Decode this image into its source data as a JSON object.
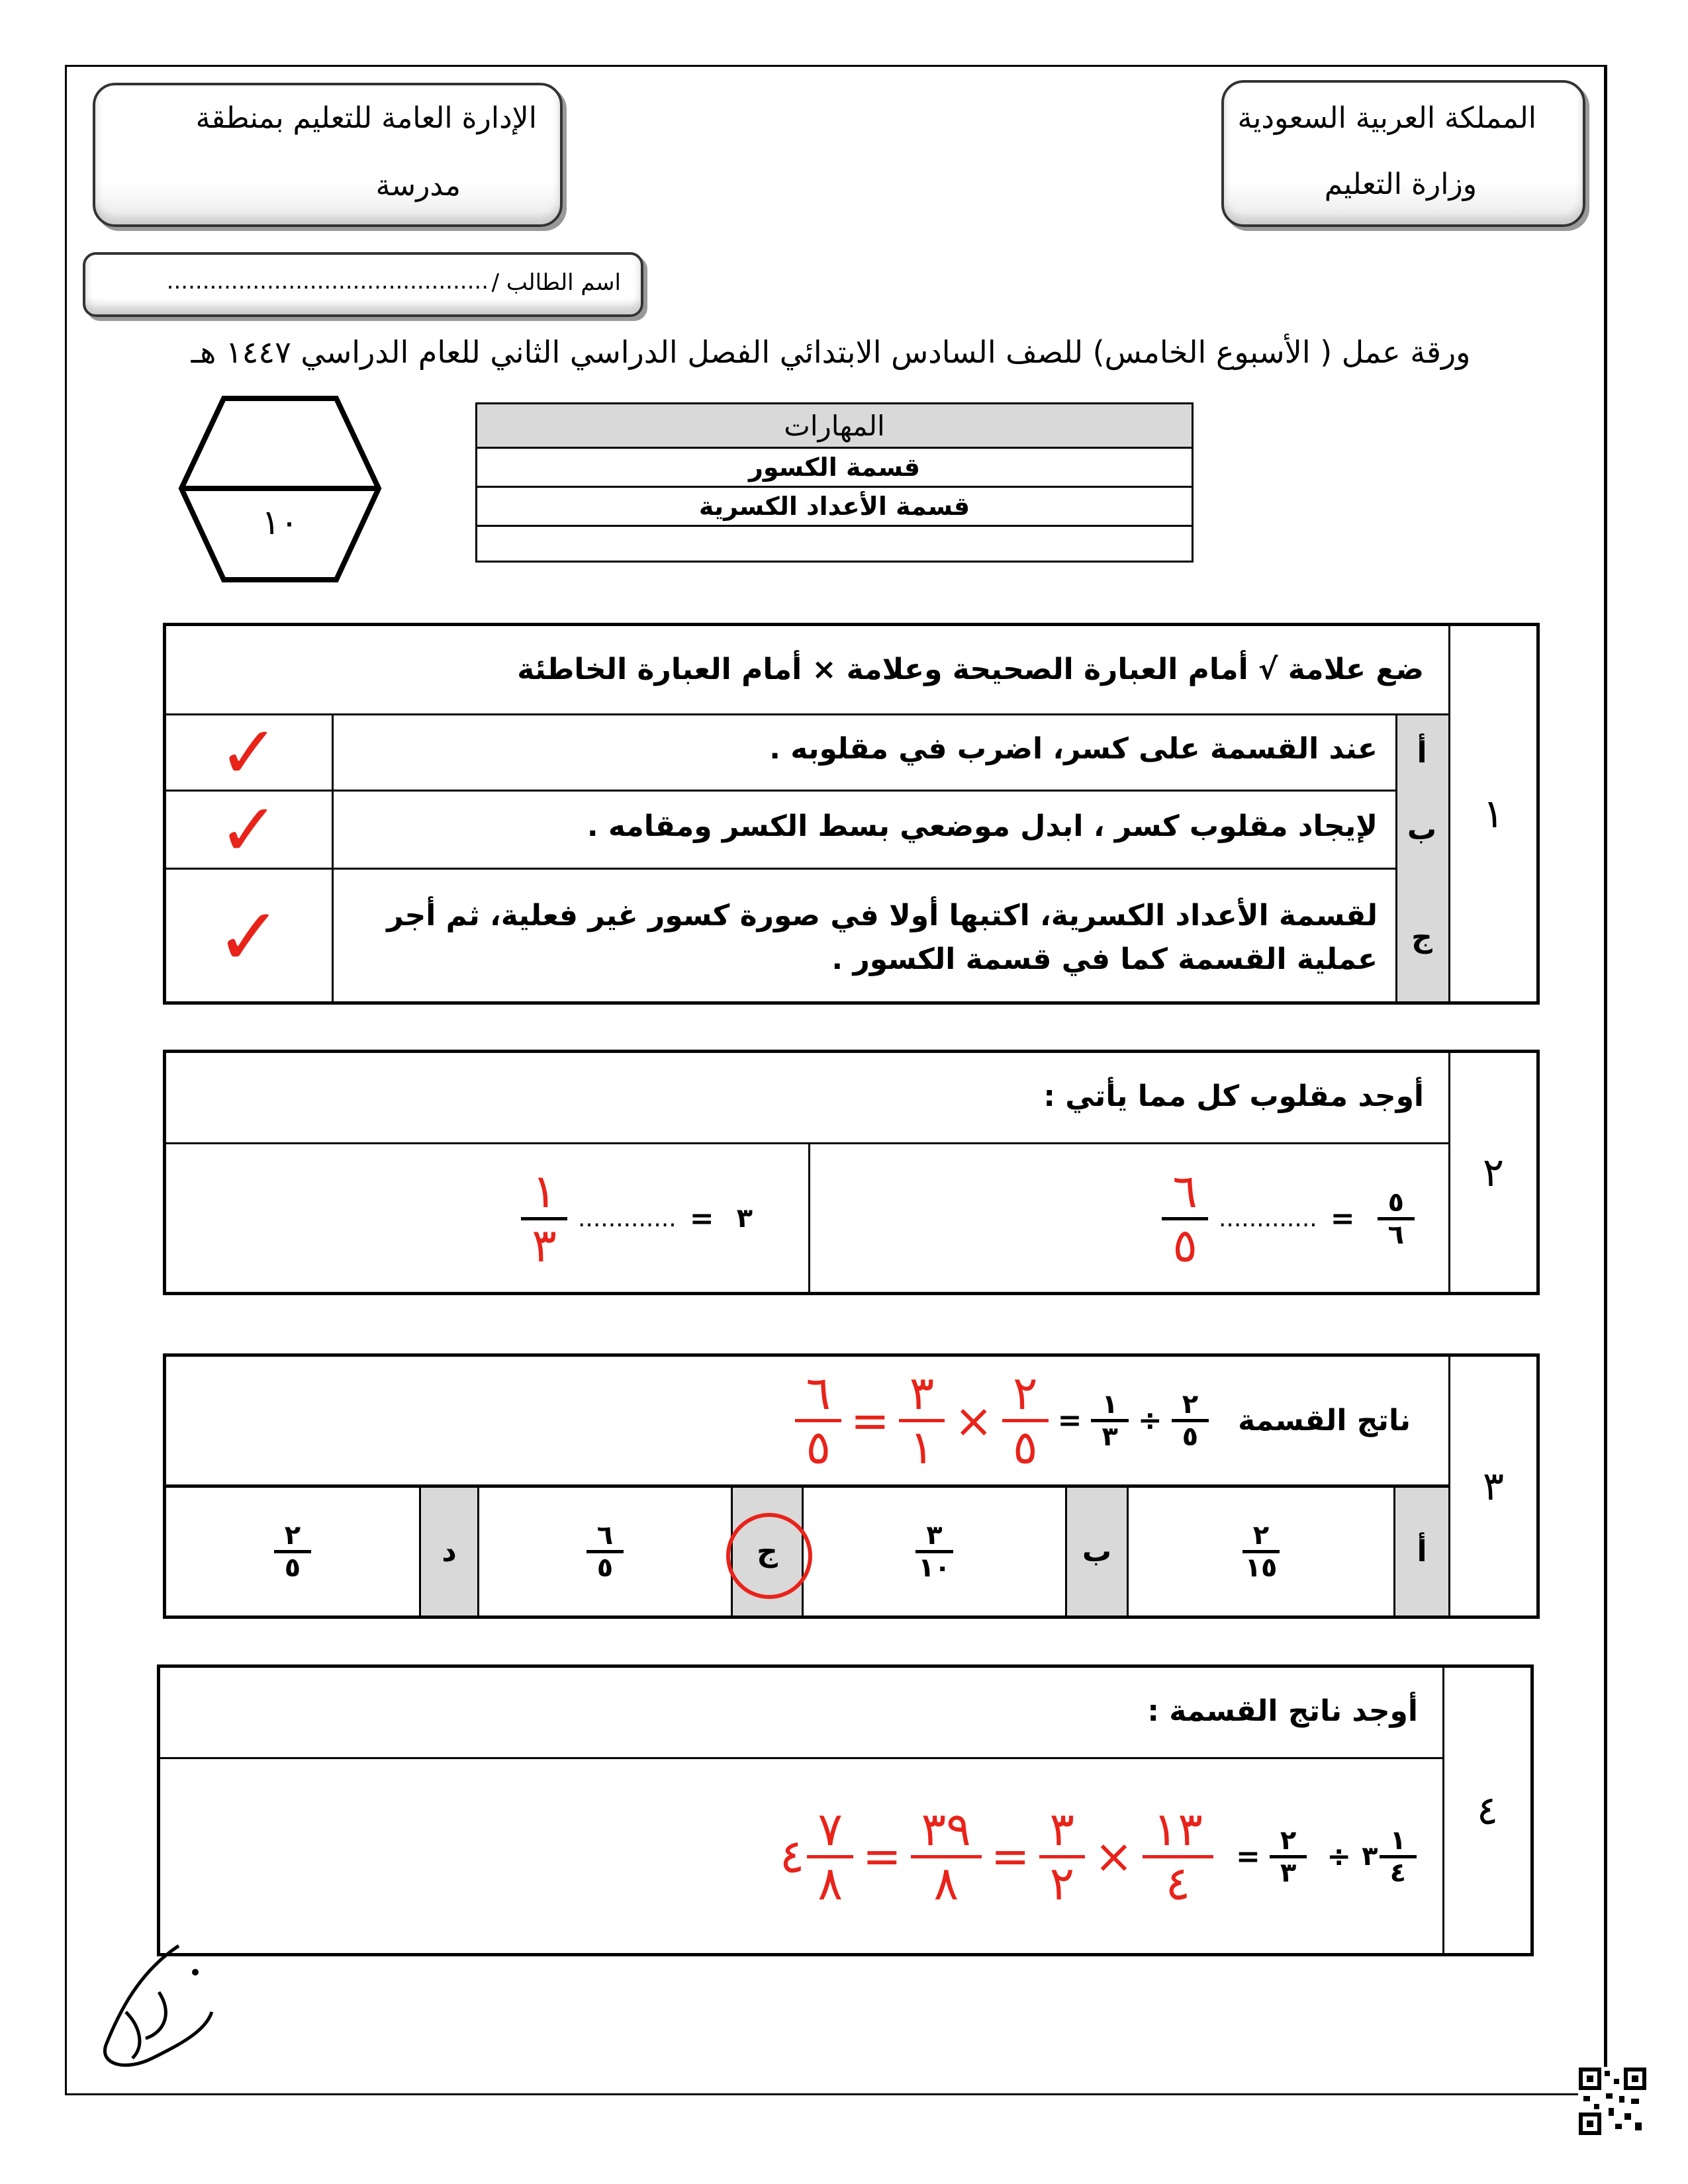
{
  "header": {
    "kingdom": "المملكة العربية السعودية",
    "ministry": "وزارة التعليم",
    "administration": "الإدارة العامة للتعليم بمنطقة",
    "school": "مدرسة",
    "student_name_label": "اسم الطالب /",
    "student_name_value": "............................................."
  },
  "title": "ورقة عمل ( الأسبوع الخامس) للصف السادس الابتدائي الفصل الدراسي الثاني للعام الدراسي ١٤٤٧ هـ",
  "score": "١٠",
  "skills": {
    "header": "المهارات",
    "items": [
      "قسمة الكسور",
      "قسمة الأعداد الكسرية",
      ""
    ]
  },
  "q1": {
    "number": "١",
    "instruction": "ضع علامة  √  أمام العبارة الصحيحة وعلامة  ×  أمام العبارة الخاطئة",
    "items": [
      {
        "letter": "أ",
        "text": "عند القسمة على كسر، اضرب في مقلوبه .",
        "answer": "✓"
      },
      {
        "letter": "ب",
        "text": "لإيجاد مقلوب كسر ، ابدل موضعي بسط الكسر ومقامه .",
        "answer": "✓"
      },
      {
        "letter": "ج",
        "text": "لقسمة الأعداد الكسرية، اكتبها أولا في صورة كسور غير فعلية، ثم أجر عملية القسمة كما في قسمة الكسور .",
        "answer": "✓"
      }
    ]
  },
  "q2": {
    "number": "٢",
    "instruction": "أوجد مقلوب كل مما يأتي :",
    "a": {
      "num": "٥",
      "den": "٦",
      "eq": "=",
      "dots": ".............",
      "ans_num": "٦",
      "ans_den": "٥"
    },
    "b": {
      "whole": "٣",
      "eq": "=",
      "dots": ".............",
      "ans_num": "١",
      "ans_den": "٣"
    }
  },
  "q3": {
    "number": "٣",
    "label": "ناتج القسمة",
    "f1": {
      "num": "٢",
      "den": "٥"
    },
    "op": "÷",
    "f2": {
      "num": "١",
      "den": "٣"
    },
    "eq": "=",
    "work": {
      "a": {
        "num": "٢",
        "den": "٥"
      },
      "times": "×",
      "b": {
        "num": "٣",
        "den": "١"
      },
      "eq": "=",
      "r": {
        "num": "٦",
        "den": "٥"
      }
    },
    "options": [
      {
        "letter": "أ",
        "num": "٢",
        "den": "١٥"
      },
      {
        "letter": "ب",
        "num": "٣",
        "den": "١٠"
      },
      {
        "letter": "ج",
        "num": "٦",
        "den": "٥",
        "selected": true
      },
      {
        "letter": "د",
        "num": "٢",
        "den": "٥"
      }
    ]
  },
  "q4": {
    "number": "٤",
    "instruction": "أوجد ناتج القسمة :",
    "whole": "٣",
    "f1": {
      "num": "١",
      "den": "٤"
    },
    "op": "÷",
    "f2": {
      "num": "٢",
      "den": "٣"
    },
    "eq": "=",
    "work": {
      "a": {
        "num": "١٣",
        "den": "٤"
      },
      "times": "×",
      "b": {
        "num": "٣",
        "den": "٢"
      },
      "eq1": "=",
      "c": {
        "num": "٣٩",
        "den": "٨"
      },
      "eq2": "=",
      "whole": "٤",
      "d": {
        "num": "٧",
        "den": "٨"
      }
    }
  },
  "signature": "أبو تركي",
  "colors": {
    "ink_red": "#e8231a",
    "cell_gray": "#d9d9d9"
  }
}
